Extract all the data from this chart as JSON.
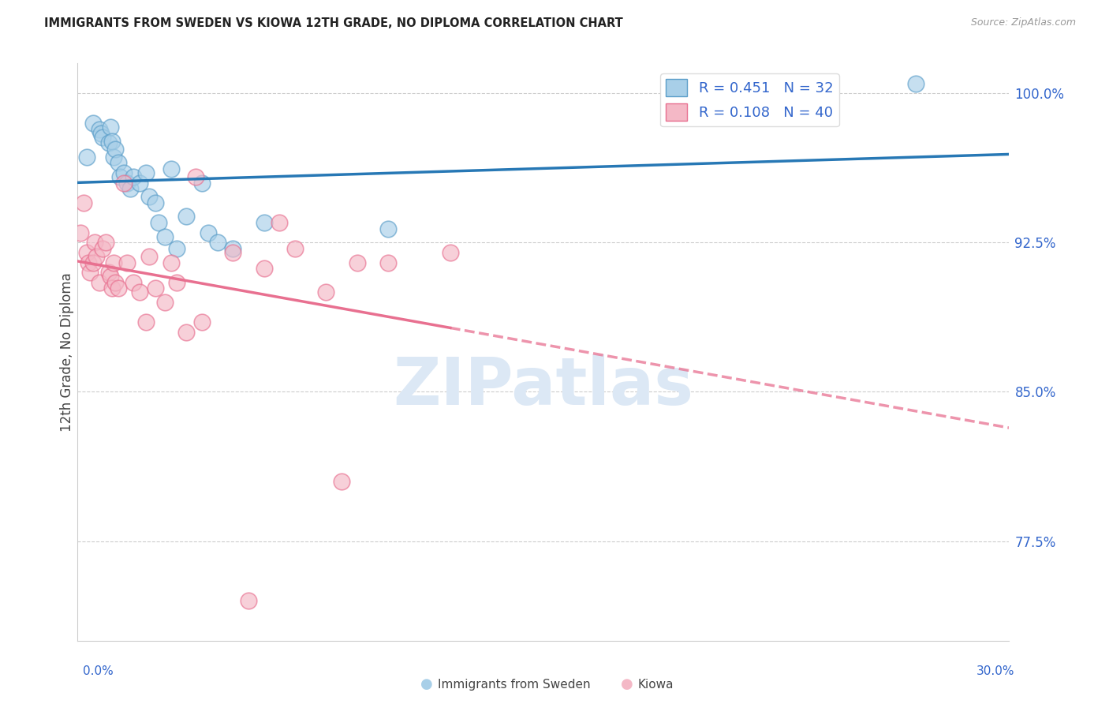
{
  "title": "IMMIGRANTS FROM SWEDEN VS KIOWA 12TH GRADE, NO DIPLOMA CORRELATION CHART",
  "source": "Source: ZipAtlas.com",
  "ylabel": "12th Grade, No Diploma",
  "legend_label1": "Immigrants from Sweden",
  "legend_label2": "Kiowa",
  "R1": 0.451,
  "N1": 32,
  "R2": 0.108,
  "N2": 40,
  "xmin": 0.0,
  "xmax": 30.0,
  "ymin": 72.5,
  "ymax": 101.5,
  "yticks": [
    77.5,
    85.0,
    92.5,
    100.0
  ],
  "color_blue_fill": "#a8cfe8",
  "color_blue_edge": "#5b9ec9",
  "color_pink_fill": "#f4b8c6",
  "color_pink_edge": "#e87090",
  "color_line_blue": "#2778b5",
  "color_line_pink": "#e87090",
  "color_text_blue": "#3366cc",
  "color_grid": "#cccccc",
  "watermark_color": "#dce8f5",
  "blue_points_x": [
    0.3,
    0.5,
    0.7,
    0.75,
    0.8,
    1.0,
    1.05,
    1.1,
    1.15,
    1.2,
    1.3,
    1.35,
    1.5,
    1.6,
    1.7,
    1.8,
    2.0,
    2.2,
    2.3,
    2.5,
    2.6,
    2.8,
    3.0,
    3.2,
    3.5,
    4.0,
    4.2,
    4.5,
    5.0,
    6.0,
    10.0,
    27.0
  ],
  "blue_points_y": [
    96.8,
    98.5,
    98.2,
    98.0,
    97.8,
    97.5,
    98.3,
    97.6,
    96.8,
    97.2,
    96.5,
    95.8,
    96.0,
    95.5,
    95.2,
    95.8,
    95.5,
    96.0,
    94.8,
    94.5,
    93.5,
    92.8,
    96.2,
    92.2,
    93.8,
    95.5,
    93.0,
    92.5,
    92.2,
    93.5,
    93.2,
    100.5
  ],
  "pink_points_x": [
    0.1,
    0.2,
    0.3,
    0.35,
    0.4,
    0.5,
    0.55,
    0.6,
    0.7,
    0.8,
    0.9,
    1.0,
    1.05,
    1.1,
    1.15,
    1.2,
    1.3,
    1.5,
    1.6,
    1.8,
    2.0,
    2.2,
    2.3,
    2.5,
    2.8,
    3.0,
    3.2,
    3.5,
    3.8,
    4.0,
    5.0,
    5.5,
    6.0,
    6.5,
    7.0,
    8.0,
    8.5,
    9.0,
    10.0,
    12.0
  ],
  "pink_points_y": [
    93.0,
    94.5,
    92.0,
    91.5,
    91.0,
    91.5,
    92.5,
    91.8,
    90.5,
    92.2,
    92.5,
    91.0,
    90.8,
    90.2,
    91.5,
    90.5,
    90.2,
    95.5,
    91.5,
    90.5,
    90.0,
    88.5,
    91.8,
    90.2,
    89.5,
    91.5,
    90.5,
    88.0,
    95.8,
    88.5,
    92.0,
    74.5,
    91.2,
    93.5,
    92.2,
    90.0,
    80.5,
    91.5,
    91.5,
    92.0
  ]
}
